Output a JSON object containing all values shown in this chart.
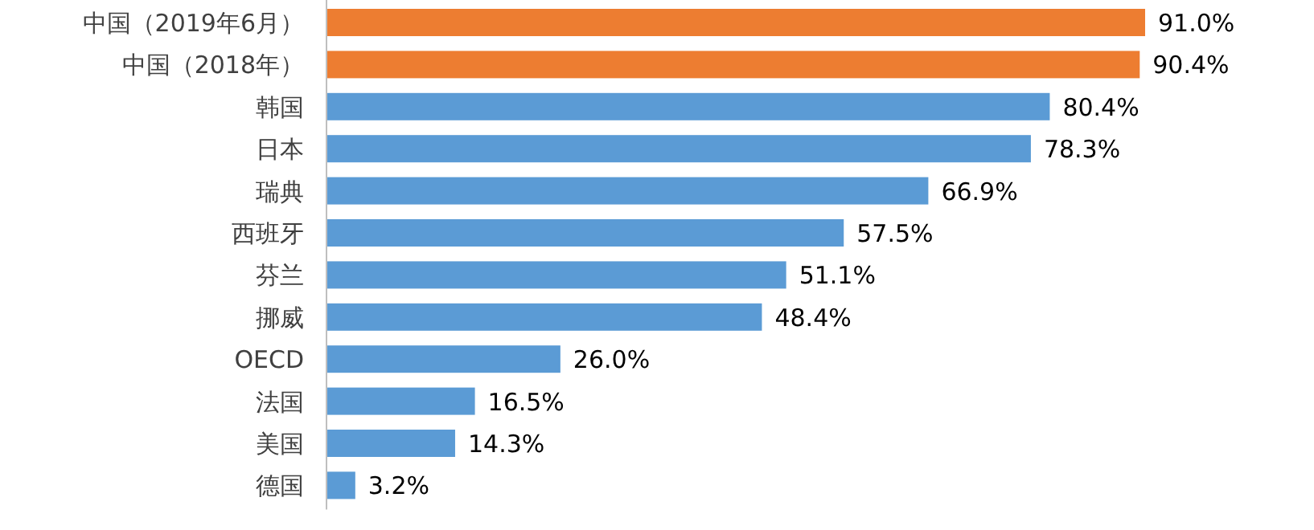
{
  "chart_data": {
    "type": "bar",
    "orientation": "horizontal",
    "categories": [
      "中国（2019年6月）",
      "中国（2018年）",
      "韩国",
      "日本",
      "瑞典",
      "西班牙",
      "芬兰",
      "挪威",
      "OECD",
      "法国",
      "美国",
      "德国"
    ],
    "values": [
      91.0,
      90.4,
      80.4,
      78.3,
      66.9,
      57.5,
      51.1,
      48.4,
      26.0,
      16.5,
      14.3,
      3.2
    ],
    "value_labels": [
      "91.0%",
      "90.4%",
      "80.4%",
      "78.3%",
      "66.9%",
      "57.5%",
      "51.1%",
      "48.4%",
      "26.0%",
      "16.5%",
      "14.3%",
      "3.2%"
    ],
    "colors": [
      "#ed7d31",
      "#ed7d31",
      "#5b9bd5",
      "#5b9bd5",
      "#5b9bd5",
      "#5b9bd5",
      "#5b9bd5",
      "#5b9bd5",
      "#5b9bd5",
      "#5b9bd5",
      "#5b9bd5",
      "#5b9bd5"
    ]
  }
}
